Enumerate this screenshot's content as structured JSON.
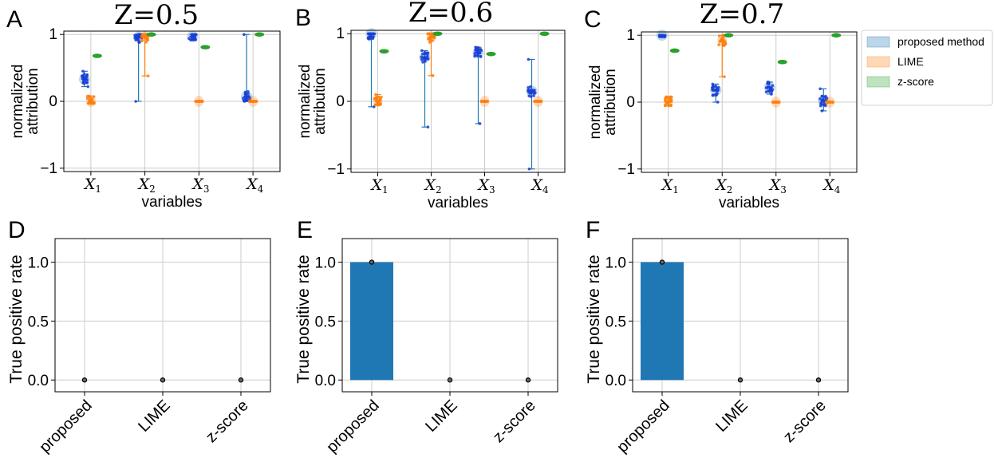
{
  "colors": {
    "proposed": "#1f77b4",
    "proposed_dots": "#1a3fd6",
    "lime": "#ff7f0e",
    "zscore": "#2ca02c",
    "grid": "#cccccc"
  },
  "legend": {
    "items": [
      {
        "label": "proposed method",
        "color": "#1f77b4"
      },
      {
        "label": "LIME",
        "color": "#ff7f0e"
      },
      {
        "label": "z-score",
        "color": "#2ca02c"
      }
    ]
  },
  "chart_data": [
    {
      "panel": "A",
      "type": "violin-strip",
      "title": "Z=0.5",
      "xlabel": "variables",
      "ylabel": [
        "normalized",
        "attribution"
      ],
      "ylim": [
        -1.05,
        1.05
      ],
      "yticks": [
        {
          "v": 1,
          "label": "1"
        },
        {
          "v": 0,
          "label": "0"
        },
        {
          "v": -1,
          "label": "−1"
        }
      ],
      "variables": [
        {
          "base": "X",
          "sub": "1"
        },
        {
          "base": "X",
          "sub": "2"
        },
        {
          "base": "X",
          "sub": "3"
        },
        {
          "base": "X",
          "sub": "4"
        }
      ],
      "series": [
        {
          "name": "proposed method",
          "values": [
            [
              0.22,
              0.45,
              0.33
            ],
            [
              0.0,
              1.0,
              0.96
            ],
            [
              0.92,
              1.0,
              0.97
            ],
            [
              0.0,
              1.0,
              0.07
            ]
          ]
        },
        {
          "name": "LIME",
          "values": [
            [
              -0.03,
              0.08,
              0.0
            ],
            [
              0.38,
              1.0,
              0.96
            ],
            [
              0.0,
              0.0,
              0.0
            ],
            [
              0.0,
              0.0,
              0.0
            ]
          ]
        },
        {
          "name": "z-score",
          "values": [
            [
              0.68,
              0.68,
              0.68
            ],
            [
              1.0,
              1.0,
              1.0
            ],
            [
              0.81,
              0.81,
              0.81
            ],
            [
              1.0,
              1.0,
              1.0
            ]
          ]
        }
      ]
    },
    {
      "panel": "B",
      "type": "violin-strip",
      "title": "Z=0.6",
      "xlabel": "variables",
      "ylabel": [
        "normalized",
        "attribution"
      ],
      "ylim": [
        -1.05,
        1.05
      ],
      "yticks": [
        {
          "v": 1,
          "label": "1"
        },
        {
          "v": 0,
          "label": "0"
        },
        {
          "v": -1,
          "label": "−1"
        }
      ],
      "variables": [
        {
          "base": "X",
          "sub": "1"
        },
        {
          "base": "X",
          "sub": "2"
        },
        {
          "base": "X",
          "sub": "3"
        },
        {
          "base": "X",
          "sub": "4"
        }
      ],
      "series": [
        {
          "name": "proposed method",
          "values": [
            [
              -0.08,
              1.0,
              1.0
            ],
            [
              -0.38,
              0.75,
              0.65
            ],
            [
              -0.33,
              0.8,
              0.72
            ],
            [
              -1.0,
              0.62,
              0.15
            ]
          ]
        },
        {
          "name": "LIME",
          "values": [
            [
              -0.05,
              0.1,
              0.0
            ],
            [
              0.38,
              1.0,
              0.95
            ],
            [
              0.0,
              0.0,
              0.0
            ],
            [
              0.0,
              0.0,
              0.0
            ]
          ]
        },
        {
          "name": "z-score",
          "values": [
            [
              0.74,
              0.74,
              0.74
            ],
            [
              1.0,
              1.0,
              1.0
            ],
            [
              0.7,
              0.7,
              0.7
            ],
            [
              1.0,
              1.0,
              1.0
            ]
          ]
        }
      ]
    },
    {
      "panel": "C",
      "type": "violin-strip",
      "title": "Z=0.7",
      "xlabel": "variables",
      "ylabel": [
        "normalized",
        "attribution"
      ],
      "ylim": [
        -1.05,
        1.05
      ],
      "yticks": [
        {
          "v": 1,
          "label": "1"
        },
        {
          "v": 0,
          "label": "0"
        },
        {
          "v": -1,
          "label": "−1"
        }
      ],
      "variables": [
        {
          "base": "X",
          "sub": "1"
        },
        {
          "base": "X",
          "sub": "2"
        },
        {
          "base": "X",
          "sub": "3"
        },
        {
          "base": "X",
          "sub": "4"
        }
      ],
      "series": [
        {
          "name": "proposed method",
          "values": [
            [
              0.98,
              1.0,
              1.0
            ],
            [
              0.0,
              0.27,
              0.18
            ],
            [
              0.12,
              0.3,
              0.22
            ],
            [
              -0.13,
              0.2,
              0.02
            ]
          ]
        },
        {
          "name": "LIME",
          "values": [
            [
              -0.05,
              0.08,
              0.0
            ],
            [
              0.38,
              1.0,
              0.92
            ],
            [
              0.0,
              0.0,
              0.0
            ],
            [
              0.0,
              0.0,
              0.0
            ]
          ]
        },
        {
          "name": "z-score",
          "values": [
            [
              0.77,
              0.77,
              0.77
            ],
            [
              1.0,
              1.0,
              1.0
            ],
            [
              0.6,
              0.6,
              0.6
            ],
            [
              1.0,
              1.0,
              1.0
            ]
          ]
        }
      ]
    },
    {
      "panel": "D",
      "type": "bar",
      "ylabel": "True positive rate",
      "ylim": [
        -0.1,
        1.2
      ],
      "yticks": [
        {
          "v": 0,
          "label": "0.0"
        },
        {
          "v": 0.5,
          "label": "0.5"
        },
        {
          "v": 1,
          "label": "1.0"
        }
      ],
      "categories": [
        "proposed",
        "LIME",
        "z-score"
      ],
      "values": [
        0.0,
        0.0,
        0.0
      ]
    },
    {
      "panel": "E",
      "type": "bar",
      "ylabel": "True positive rate",
      "ylim": [
        -0.1,
        1.2
      ],
      "yticks": [
        {
          "v": 0,
          "label": "0.0"
        },
        {
          "v": 0.5,
          "label": "0.5"
        },
        {
          "v": 1,
          "label": "1.0"
        }
      ],
      "categories": [
        "proposed",
        "LIME",
        "z-score"
      ],
      "values": [
        1.0,
        0.0,
        0.0
      ]
    },
    {
      "panel": "F",
      "type": "bar",
      "ylabel": "True positive rate",
      "ylim": [
        -0.1,
        1.2
      ],
      "yticks": [
        {
          "v": 0,
          "label": "0.0"
        },
        {
          "v": 0.5,
          "label": "0.5"
        },
        {
          "v": 1,
          "label": "1.0"
        }
      ],
      "categories": [
        "proposed",
        "LIME",
        "z-score"
      ],
      "values": [
        1.0,
        0.0,
        0.0
      ]
    }
  ]
}
